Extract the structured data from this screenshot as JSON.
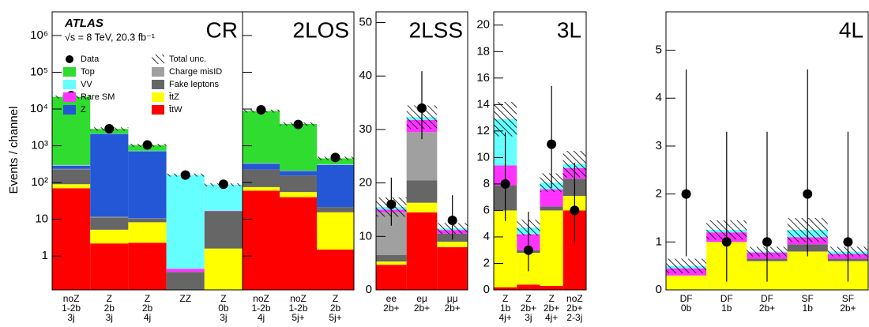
{
  "chart_data": {
    "type": "bar",
    "stacked": true,
    "ylabel": "Events / channel",
    "annotations": [
      "ATLAS",
      "√s = 8 TeV, 20.3 fb⁻¹"
    ],
    "panels": [
      {
        "title": "CR",
        "log": true,
        "ylim": [
          0.12,
          4400000
        ],
        "yticks": [
          1,
          10,
          {
            "value": 100,
            "label": "10²"
          },
          {
            "value": 1000,
            "label": "10³"
          },
          {
            "value": 10000,
            "label": "10⁴"
          },
          {
            "value": 100000,
            "label": "10⁵"
          },
          {
            "value": 1000000,
            "label": "10⁶"
          }
        ],
        "categories": [
          [
            "noZ",
            "1-2b",
            "3j"
          ],
          [
            "Z",
            "2b",
            "3j"
          ],
          [
            "Z",
            "2b",
            "4j"
          ],
          [
            "ZZ"
          ],
          [
            "Z",
            "0b",
            "3j"
          ]
        ]
      },
      {
        "title": "2LOS",
        "log": true,
        "ylim": [
          0.12,
          4400000
        ],
        "ytick_labels": false,
        "yticks": [
          1,
          10,
          100,
          1000,
          10000,
          100000,
          1000000
        ],
        "categories": [
          [
            "noZ",
            "1-2b",
            "4j"
          ],
          [
            "noZ",
            "1-2b",
            "5j+"
          ],
          [
            "Z",
            "2b",
            "5j+"
          ]
        ]
      },
      {
        "title": "2LSS",
        "log": false,
        "ylim": [
          0,
          52
        ],
        "yticks": [
          0,
          10,
          20,
          30,
          40,
          50
        ],
        "categories": [
          [
            "ee",
            "2b+"
          ],
          [
            "eμ",
            "2b+"
          ],
          [
            "μμ",
            "2b+"
          ]
        ]
      },
      {
        "title": "3L",
        "log": false,
        "ylim": [
          0,
          21
        ],
        "yticks": [
          0,
          2,
          4,
          6,
          8,
          10,
          12,
          14,
          16,
          18,
          20
        ],
        "categories": [
          [
            "Z",
            "1b",
            "4j+"
          ],
          [
            "Z",
            "2b+",
            "3j"
          ],
          [
            "Z",
            "2b+",
            "4j+"
          ],
          [
            "noZ",
            "2b+",
            "2-3j"
          ]
        ]
      },
      {
        "title": "4L",
        "log": false,
        "ylim": [
          0,
          5.8
        ],
        "yticks": [
          0,
          1,
          2,
          3,
          4,
          5
        ],
        "categories": [
          [
            "DF",
            "0b"
          ],
          [
            "DF",
            "1b"
          ],
          [
            "DF",
            "2b+"
          ],
          [
            "SF",
            "1b"
          ],
          [
            "SF",
            "2b+"
          ]
        ]
      }
    ],
    "series": [
      {
        "name": "t̄tW",
        "color": "#ff0000",
        "values": [
          70,
          2.2,
          2.3,
          0,
          0.1,
          60,
          40,
          1.5,
          4.7,
          14.5,
          8,
          0.2,
          0.4,
          0.3,
          6,
          0,
          0,
          0,
          0,
          0
        ]
      },
      {
        "name": "t̄tZ",
        "color": "#ffff00",
        "values": [
          20,
          3,
          6,
          0.02,
          1.5,
          15,
          15,
          14,
          0.6,
          1.8,
          1,
          5.8,
          2.4,
          5.7,
          1.1,
          0.3,
          1,
          0.6,
          0.8,
          0.6
        ]
      },
      {
        "name": "Fake leptons",
        "color": "#666666",
        "values": [
          140,
          6,
          2,
          0.35,
          15,
          150,
          100,
          6,
          1.2,
          4.2,
          1.5,
          1.9,
          0.2,
          0.3,
          1.3,
          0,
          0,
          0.05,
          0.15,
          0.05
        ]
      },
      {
        "name": "Charge misID",
        "color": "#a0a0a0",
        "values": [
          5,
          0.5,
          0.3,
          0,
          0,
          0,
          0,
          0,
          8,
          9,
          0,
          0,
          0,
          0,
          0,
          0,
          0,
          0,
          0,
          0
        ]
      },
      {
        "name": "Z",
        "color": "#2457d6",
        "values": [
          50,
          2100,
          700,
          0,
          0,
          100,
          50,
          280,
          0,
          0,
          0,
          0,
          0,
          0,
          0,
          0,
          0,
          0,
          0,
          0
        ]
      },
      {
        "name": "Rare SM",
        "color": "#ff33ff",
        "values": [
          5,
          2,
          3,
          0.08,
          0.5,
          5,
          3,
          3,
          0.5,
          2.3,
          0.7,
          1.5,
          1.2,
          1.3,
          0.8,
          0.15,
          0.2,
          0.13,
          0.15,
          0.1
        ]
      },
      {
        "name": "VV",
        "color": "#66ffff",
        "values": [
          10,
          50,
          20,
          160,
          70,
          5,
          2,
          10,
          0.5,
          0.5,
          0.3,
          3.5,
          0.5,
          0.5,
          0.3,
          0.05,
          0.05,
          0.02,
          0.15,
          0.05
        ]
      },
      {
        "name": "Top",
        "color": "#2fdc2f",
        "values": [
          21000,
          700,
          300,
          0,
          0,
          8500,
          3700,
          140,
          0,
          0,
          0,
          0,
          0,
          0,
          0,
          0,
          0,
          0,
          0,
          0
        ]
      }
    ],
    "data": {
      "name": "Data",
      "color": "#000000",
      "values": [
        23000,
        2900,
        1050,
        160,
        90,
        9500,
        3800,
        480,
        16,
        34,
        13,
        8,
        3,
        11,
        6,
        2,
        1,
        1,
        2,
        1
      ],
      "error_low": [
        150,
        54,
        32,
        13,
        9.5,
        97,
        62,
        22,
        4,
        5.8,
        3.6,
        2.8,
        1.6,
        3.3,
        2.4,
        1.3,
        0.83,
        0.83,
        1.3,
        0.83
      ],
      "error_high": [
        150,
        54,
        32,
        13,
        9.5,
        97,
        62,
        22,
        5,
        6.9,
        4.7,
        3.9,
        2.9,
        4.4,
        3.6,
        2.6,
        2.3,
        2.3,
        2.6,
        2.3
      ]
    },
    "uncertainty": {
      "name": "Total unc.",
      "values": [
        2000,
        300,
        100,
        15,
        8,
        800,
        400,
        50,
        1.8,
        2.2,
        1,
        1.3,
        0.6,
        0.7,
        1,
        0.15,
        0.2,
        0.1,
        0.25,
        0.1
      ]
    }
  }
}
